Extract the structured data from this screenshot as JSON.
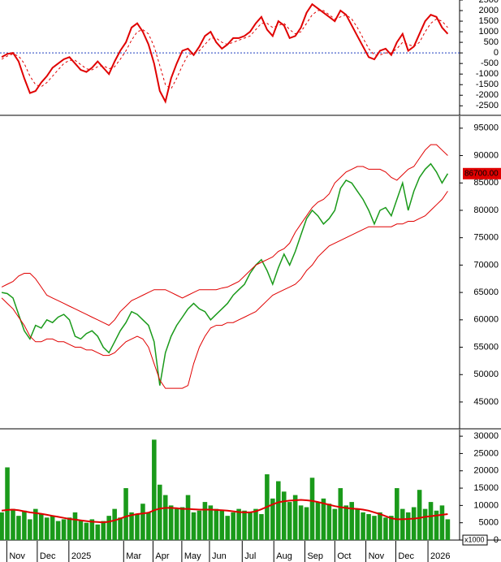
{
  "chart_data": [
    {
      "type": "line",
      "ylim": [
        -2950,
        2500
      ],
      "yticks": [
        -2500,
        -2000,
        -1500,
        -1000,
        -500,
        0,
        500,
        1000,
        1500,
        2000,
        2500
      ],
      "xlim": [
        -0.3,
        81.1
      ],
      "zero_line": {
        "value": 0,
        "color": "#1f3fbf"
      },
      "series": [
        {
          "color": "#e00000",
          "dashed": false,
          "values": [
            -200,
            -50,
            0,
            -400,
            -1200,
            -1900,
            -1800,
            -1400,
            -1100,
            -700,
            -500,
            -300,
            -200,
            -500,
            -800,
            -900,
            -700,
            -400,
            -700,
            -1000,
            -400,
            100,
            500,
            1200,
            1400,
            1000,
            400,
            -500,
            -1800,
            -2300,
            -1200,
            -500,
            100,
            200,
            -100,
            300,
            800,
            1000,
            500,
            200,
            400,
            700,
            700,
            800,
            1000,
            1400,
            1700,
            1100,
            800,
            1500,
            1300,
            700,
            800,
            1200,
            1900,
            2300,
            2100,
            1900,
            1700,
            1500,
            2000,
            1800,
            1300,
            800,
            300,
            -200,
            -300,
            100,
            200,
            -100,
            500,
            900,
            100,
            300,
            900,
            1500,
            1800,
            1700,
            1200,
            900
          ]
        },
        {
          "color": "#e00000",
          "dashed": true,
          "values": [
            -300,
            -150,
            -50,
            -150,
            -500,
            -1100,
            -1500,
            -1600,
            -1400,
            -1100,
            -800,
            -500,
            -350,
            -350,
            -550,
            -750,
            -800,
            -650,
            -600,
            -750,
            -650,
            -300,
            100,
            600,
            1000,
            1100,
            900,
            300,
            -600,
            -1500,
            -1700,
            -1200,
            -600,
            -100,
            0,
            100,
            400,
            700,
            700,
            500,
            400,
            500,
            600,
            700,
            800,
            1100,
            1400,
            1400,
            1200,
            1300,
            1400,
            1100,
            900,
            1000,
            1400,
            1800,
            2000,
            2000,
            1800,
            1600,
            1700,
            1800,
            1600,
            1200,
            700,
            200,
            -100,
            -100,
            0,
            0,
            200,
            500,
            400,
            300,
            500,
            1000,
            1400,
            1600,
            1500,
            1200
          ]
        }
      ]
    },
    {
      "type": "line",
      "ylim": [
        40100,
        97200
      ],
      "yticks": [
        45000,
        50000,
        55000,
        60000,
        65000,
        70000,
        75000,
        80000,
        85000,
        90000,
        95000
      ],
      "xlim": [
        -0.3,
        81.1
      ],
      "price_tag": {
        "value": 86700,
        "label": "86700.00",
        "color": "#e00000"
      },
      "series": [
        {
          "color": "#1a9a1a",
          "width": 1.5,
          "values": [
            65000,
            64800,
            64000,
            61000,
            58000,
            56500,
            59000,
            58500,
            60000,
            59500,
            60500,
            61000,
            60000,
            57000,
            56500,
            57500,
            58000,
            57000,
            55000,
            54000,
            56000,
            58000,
            59500,
            61500,
            61000,
            60000,
            59000,
            56000,
            48000,
            54000,
            57000,
            59000,
            60500,
            62000,
            63000,
            62000,
            61500,
            60000,
            61000,
            62000,
            63000,
            64500,
            65500,
            66500,
            68500,
            70000,
            71000,
            69000,
            66500,
            69500,
            72000,
            70000,
            72500,
            75500,
            78500,
            80000,
            79000,
            77500,
            78500,
            80000,
            84000,
            85500,
            85000,
            83500,
            82000,
            80000,
            77500,
            80000,
            80500,
            79000,
            82000,
            85000,
            80000,
            83500,
            86000,
            87500,
            88500,
            87000,
            85000,
            86700
          ]
        },
        {
          "color": "#e00000",
          "width": 1,
          "values": [
            66000,
            66500,
            67000,
            68000,
            68500,
            68500,
            67500,
            66000,
            64500,
            64000,
            63500,
            63000,
            62500,
            62000,
            61500,
            61000,
            60500,
            60000,
            59500,
            59000,
            60000,
            61500,
            62500,
            63500,
            64000,
            64500,
            65000,
            65500,
            65500,
            65500,
            65000,
            64500,
            64000,
            64500,
            65000,
            65500,
            65500,
            65500,
            65500,
            65800,
            66000,
            66500,
            67000,
            68000,
            69000,
            70000,
            70500,
            71000,
            71500,
            72500,
            73000,
            74000,
            76000,
            77500,
            79000,
            80500,
            81500,
            82000,
            83000,
            85000,
            86000,
            87000,
            87500,
            88000,
            88000,
            87500,
            87500,
            87500,
            87000,
            86000,
            85500,
            86500,
            87500,
            88000,
            89500,
            91000,
            92000,
            92000,
            91000,
            90000
          ]
        },
        {
          "color": "#e00000",
          "width": 1,
          "values": [
            64000,
            63000,
            62000,
            60500,
            59000,
            57000,
            56000,
            56000,
            56500,
            56500,
            56000,
            56000,
            55500,
            55000,
            55000,
            54500,
            54500,
            54000,
            53500,
            53500,
            54000,
            55000,
            56000,
            56500,
            57000,
            56500,
            55000,
            52000,
            49000,
            47500,
            47500,
            47500,
            47500,
            48000,
            52000,
            55000,
            57000,
            58500,
            59000,
            59000,
            59500,
            59500,
            60000,
            60500,
            61000,
            61500,
            62500,
            63500,
            64500,
            65000,
            65500,
            66000,
            66500,
            67500,
            69000,
            70000,
            71500,
            72500,
            73500,
            74000,
            74500,
            75000,
            75500,
            76000,
            76500,
            77000,
            77000,
            77000,
            77000,
            77000,
            77500,
            77500,
            78000,
            78000,
            78500,
            79000,
            80000,
            81000,
            82000,
            83500
          ]
        }
      ]
    },
    {
      "type": "bar",
      "ylim": [
        0,
        31900
      ],
      "yticks": [
        0,
        5000,
        10000,
        15000,
        20000,
        25000,
        30000
      ],
      "unit_label": "x1000",
      "xlim": [
        -0.3,
        81.1
      ],
      "xticks": [
        {
          "value": 0.9,
          "label": "Nov"
        },
        {
          "value": 6.3,
          "label": "Dec"
        },
        {
          "value": 11.9,
          "label": "2025"
        },
        {
          "value": 21.6,
          "label": "Mar"
        },
        {
          "value": 26.8,
          "label": "Apr"
        },
        {
          "value": 31.9,
          "label": "May"
        },
        {
          "value": 36.8,
          "label": "Jun"
        },
        {
          "value": 42.6,
          "label": "Jul"
        },
        {
          "value": 48.2,
          "label": "Aug"
        },
        {
          "value": 53.7,
          "label": "Sep"
        },
        {
          "value": 59,
          "label": "Oct"
        },
        {
          "value": 64.5,
          "label": "Nov"
        },
        {
          "value": 69.8,
          "label": "Dec"
        },
        {
          "value": 75.5,
          "label": "2026"
        }
      ],
      "series": [
        {
          "type": "bar",
          "color": "#1a9a1a",
          "values": [
            8000,
            21000,
            9000,
            7000,
            8500,
            6000,
            9000,
            7500,
            6500,
            7000,
            5500,
            6000,
            6500,
            8000,
            5500,
            5000,
            6000,
            4500,
            5500,
            7000,
            9000,
            6500,
            15000,
            8000,
            7500,
            10500,
            8000,
            29000,
            16000,
            13000,
            10000,
            9000,
            9500,
            13000,
            8000,
            8500,
            11000,
            10000,
            9000,
            8500,
            7000,
            8000,
            9000,
            8500,
            8000,
            9000,
            7500,
            19000,
            12000,
            17000,
            14000,
            11000,
            13000,
            10000,
            9500,
            18000,
            11000,
            12000,
            10500,
            9000,
            15000,
            10000,
            11000,
            9000,
            8000,
            7500,
            7000,
            8000,
            6500,
            7000,
            15000,
            9000,
            8000,
            9500,
            14500,
            9000,
            11000,
            8500,
            10000,
            6000
          ]
        },
        {
          "type": "line",
          "color": "#e00000",
          "values": [
            8500,
            8700,
            8800,
            8600,
            8300,
            8000,
            7800,
            7600,
            7300,
            7000,
            6700,
            6400,
            6100,
            5900,
            5700,
            5500,
            5300,
            5200,
            5100,
            5300,
            5700,
            6200,
            6800,
            7200,
            7500,
            7700,
            7900,
            8600,
            9100,
            9300,
            9300,
            9200,
            9000,
            9000,
            8900,
            8800,
            8800,
            8800,
            8700,
            8600,
            8500,
            8300,
            8100,
            8000,
            8000,
            8300,
            8900,
            9600,
            10300,
            10900,
            11200,
            11400,
            11500,
            11600,
            11500,
            11300,
            11000,
            10600,
            10200,
            9800,
            9500,
            9300,
            9100,
            9000,
            8800,
            8500,
            8000,
            7500,
            6900,
            6300,
            6000,
            6000,
            6100,
            6200,
            6400,
            6700,
            6900,
            7100,
            7300,
            7500
          ]
        }
      ]
    }
  ]
}
